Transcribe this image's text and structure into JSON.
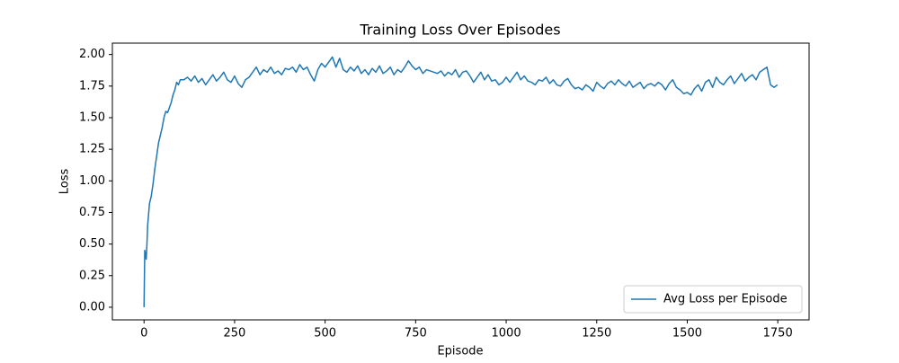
{
  "chart_data": {
    "type": "line",
    "title": "Training Loss Over Episodes",
    "x_label": "Episode",
    "y_label": "Loss",
    "x": [
      0,
      2,
      4,
      6,
      8,
      10,
      15,
      20,
      25,
      30,
      35,
      40,
      45,
      50,
      55,
      60,
      65,
      70,
      75,
      80,
      85,
      90,
      95,
      100,
      110,
      120,
      130,
      140,
      150,
      160,
      170,
      180,
      190,
      200,
      210,
      220,
      230,
      240,
      250,
      260,
      270,
      280,
      290,
      300,
      310,
      320,
      330,
      340,
      350,
      360,
      370,
      380,
      390,
      400,
      410,
      420,
      430,
      440,
      450,
      460,
      470,
      480,
      490,
      500,
      510,
      520,
      530,
      540,
      550,
      560,
      570,
      580,
      590,
      600,
      610,
      620,
      630,
      640,
      650,
      660,
      670,
      680,
      690,
      700,
      710,
      720,
      730,
      740,
      750,
      760,
      770,
      780,
      790,
      800,
      810,
      820,
      830,
      840,
      850,
      860,
      870,
      880,
      890,
      900,
      910,
      920,
      930,
      940,
      950,
      960,
      970,
      980,
      990,
      1000,
      1010,
      1020,
      1030,
      1040,
      1050,
      1060,
      1070,
      1080,
      1090,
      1100,
      1110,
      1120,
      1130,
      1140,
      1150,
      1160,
      1170,
      1180,
      1190,
      1200,
      1210,
      1220,
      1230,
      1240,
      1250,
      1260,
      1270,
      1280,
      1290,
      1300,
      1310,
      1320,
      1330,
      1340,
      1350,
      1360,
      1370,
      1380,
      1390,
      1400,
      1410,
      1420,
      1430,
      1440,
      1450,
      1460,
      1470,
      1480,
      1490,
      1500,
      1510,
      1520,
      1530,
      1540,
      1550,
      1560,
      1570,
      1580,
      1590,
      1600,
      1610,
      1620,
      1630,
      1640,
      1650,
      1660,
      1670,
      1680,
      1690,
      1700,
      1710,
      1720,
      1730,
      1740,
      1749
    ],
    "series": [
      {
        "name": "Avg Loss per Episode",
        "color": "#1f77b4",
        "values": [
          0,
          0.45,
          0.42,
          0.38,
          0.5,
          0.65,
          0.82,
          0.88,
          0.98,
          1.1,
          1.2,
          1.3,
          1.36,
          1.42,
          1.5,
          1.55,
          1.54,
          1.58,
          1.62,
          1.68,
          1.72,
          1.78,
          1.76,
          1.8,
          1.8,
          1.82,
          1.79,
          1.83,
          1.78,
          1.81,
          1.76,
          1.8,
          1.84,
          1.79,
          1.82,
          1.86,
          1.8,
          1.78,
          1.83,
          1.77,
          1.74,
          1.8,
          1.82,
          1.86,
          1.9,
          1.84,
          1.88,
          1.86,
          1.9,
          1.85,
          1.87,
          1.84,
          1.89,
          1.88,
          1.9,
          1.86,
          1.92,
          1.88,
          1.9,
          1.84,
          1.79,
          1.88,
          1.93,
          1.9,
          1.94,
          1.98,
          1.9,
          1.97,
          1.88,
          1.86,
          1.9,
          1.87,
          1.91,
          1.85,
          1.88,
          1.84,
          1.89,
          1.86,
          1.91,
          1.85,
          1.87,
          1.9,
          1.84,
          1.88,
          1.86,
          1.9,
          1.95,
          1.91,
          1.88,
          1.9,
          1.85,
          1.88,
          1.87,
          1.86,
          1.85,
          1.87,
          1.83,
          1.86,
          1.84,
          1.88,
          1.82,
          1.86,
          1.87,
          1.83,
          1.78,
          1.82,
          1.86,
          1.8,
          1.84,
          1.79,
          1.8,
          1.76,
          1.78,
          1.82,
          1.78,
          1.82,
          1.86,
          1.8,
          1.83,
          1.79,
          1.78,
          1.76,
          1.8,
          1.79,
          1.82,
          1.77,
          1.8,
          1.76,
          1.75,
          1.79,
          1.81,
          1.76,
          1.73,
          1.74,
          1.72,
          1.76,
          1.74,
          1.71,
          1.78,
          1.75,
          1.73,
          1.77,
          1.79,
          1.76,
          1.8,
          1.77,
          1.75,
          1.79,
          1.74,
          1.76,
          1.78,
          1.73,
          1.76,
          1.77,
          1.75,
          1.78,
          1.76,
          1.72,
          1.77,
          1.8,
          1.74,
          1.72,
          1.69,
          1.7,
          1.68,
          1.73,
          1.76,
          1.71,
          1.78,
          1.8,
          1.74,
          1.82,
          1.78,
          1.76,
          1.8,
          1.83,
          1.77,
          1.81,
          1.85,
          1.79,
          1.82,
          1.84,
          1.8,
          1.86,
          1.88,
          1.9,
          1.76,
          1.74,
          1.76
        ]
      }
    ],
    "xlim": [
      -87.45,
      1836.45
    ],
    "ylim": [
      -0.1,
      2.09
    ],
    "xticks": [
      0,
      250,
      500,
      750,
      1000,
      1250,
      1500,
      1750
    ],
    "yticks": [
      {
        "value": 0,
        "label": "0.00"
      },
      {
        "value": 0.25,
        "label": "0.25"
      },
      {
        "value": 0.5,
        "label": "0.50"
      },
      {
        "value": 0.75,
        "label": "0.75"
      },
      {
        "value": 1,
        "label": "1.00"
      },
      {
        "value": 1.25,
        "label": "1.25"
      },
      {
        "value": 1.5,
        "label": "1.50"
      },
      {
        "value": 1.75,
        "label": "1.75"
      },
      {
        "value": 2,
        "label": "2.00"
      }
    ],
    "legend": "lower right"
  }
}
